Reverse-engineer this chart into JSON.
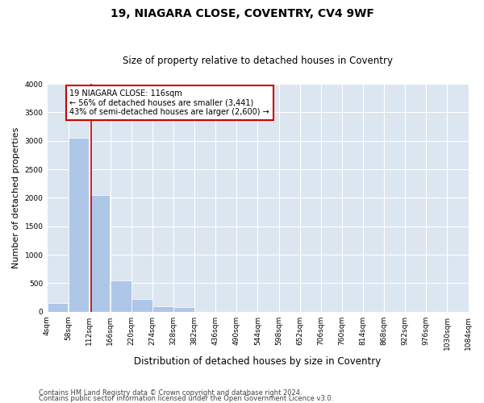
{
  "title1": "19, NIAGARA CLOSE, COVENTRY, CV4 9WF",
  "title2": "Size of property relative to detached houses in Coventry",
  "xlabel": "Distribution of detached houses by size in Coventry",
  "ylabel": "Number of detached properties",
  "footnote1": "Contains HM Land Registry data © Crown copyright and database right 2024.",
  "footnote2": "Contains public sector information licensed under the Open Government Licence v3.0.",
  "annotation_line1": "19 NIAGARA CLOSE: 116sqm",
  "annotation_line2": "← 56% of detached houses are smaller (3,441)",
  "annotation_line3": "43% of semi-detached houses are larger (2,600) →",
  "property_size": 116,
  "bin_edges": [
    4,
    58,
    112,
    166,
    220,
    274,
    328,
    382,
    436,
    490,
    544,
    598,
    652,
    706,
    760,
    814,
    868,
    922,
    976,
    1030,
    1084
  ],
  "bar_heights": [
    150,
    3050,
    2050,
    550,
    225,
    100,
    75,
    0,
    0,
    0,
    0,
    0,
    0,
    0,
    0,
    0,
    0,
    0,
    0,
    0
  ],
  "bar_color": "#aec6e8",
  "bar_edgecolor": "#ffffff",
  "vline_color": "#cc0000",
  "background_color": "#dce6f0",
  "grid_color": "#ffffff",
  "ylim": [
    0,
    4000
  ],
  "yticks": [
    0,
    500,
    1000,
    1500,
    2000,
    2500,
    3000,
    3500,
    4000
  ],
  "annotation_box_color": "#cc0000",
  "annotation_box_facecolor": "#ffffff",
  "title1_fontsize": 10,
  "title2_fontsize": 8.5,
  "ylabel_fontsize": 8,
  "xlabel_fontsize": 8.5,
  "tick_fontsize": 6.5,
  "footnote_fontsize": 6
}
